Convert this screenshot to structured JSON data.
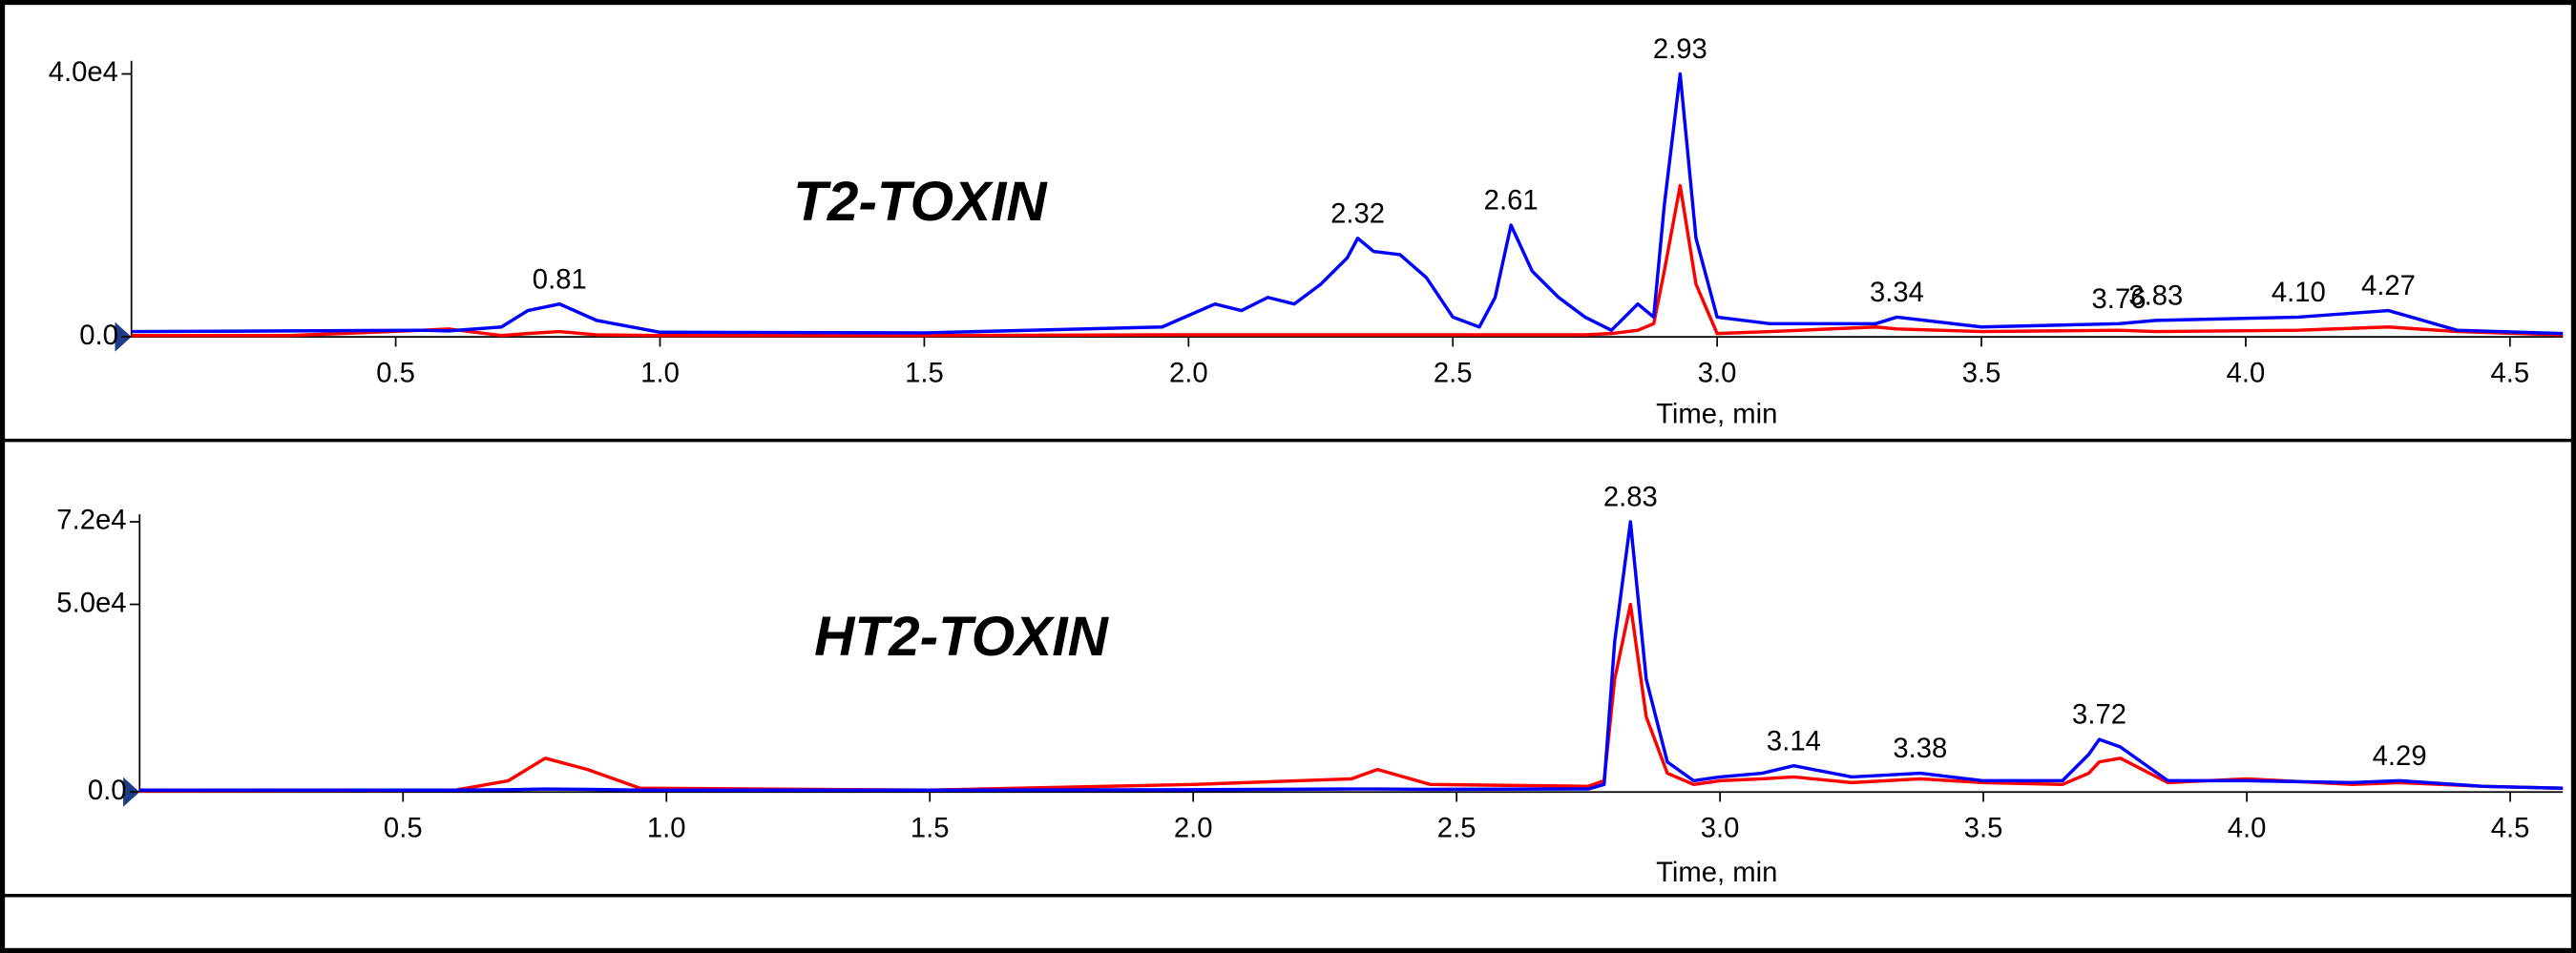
{
  "chart_data": [
    {
      "type": "line",
      "title": "T2-TOXIN",
      "xlabel": "Time, min",
      "x": [
        0,
        0.3,
        0.55,
        0.6,
        0.7,
        0.75,
        0.81,
        0.88,
        1.0,
        1.5,
        1.95,
        2.05,
        2.1,
        2.15,
        2.2,
        2.25,
        2.3,
        2.32,
        2.35,
        2.4,
        2.45,
        2.5,
        2.55,
        2.58,
        2.61,
        2.65,
        2.7,
        2.75,
        2.8,
        2.85,
        2.88,
        2.9,
        2.93,
        2.96,
        3.0,
        3.1,
        3.3,
        3.34,
        3.5,
        3.76,
        3.83,
        4.1,
        4.27,
        4.4,
        4.6
      ],
      "series": [
        {
          "color": "#ff0000",
          "values": [
            200,
            200,
            1000,
            1200,
            200,
            500,
            800,
            300,
            200,
            200,
            300,
            300,
            300,
            300,
            300,
            300,
            300,
            300,
            300,
            300,
            300,
            300,
            300,
            300,
            300,
            300,
            300,
            300,
            500,
            1000,
            2000,
            10000,
            23000,
            8000,
            500,
            800,
            1500,
            1200,
            800,
            1000,
            800,
            1000,
            1500,
            800,
            300
          ]
        },
        {
          "color": "#0000ff",
          "values": [
            800,
            900,
            1000,
            900,
            1500,
            4000,
            5000,
            2500,
            700,
            600,
            1500,
            5000,
            4000,
            6000,
            5000,
            8000,
            12000,
            15000,
            13000,
            12500,
            9000,
            3000,
            1500,
            6000,
            17000,
            10000,
            6000,
            3000,
            1000,
            5000,
            3000,
            20000,
            40000,
            15000,
            3000,
            2000,
            2000,
            3000,
            1500,
            2000,
            2500,
            3000,
            4000,
            1000,
            500
          ]
        }
      ],
      "xlim": [
        0,
        4.6
      ],
      "xticks": [
        0.5,
        {
          "value": 1,
          "label": "1.0"
        },
        1.5,
        {
          "value": 2,
          "label": "2.0"
        },
        2.5,
        {
          "value": 3,
          "label": "3.0"
        },
        3.5,
        {
          "value": 4,
          "label": "4.0"
        },
        4.5
      ],
      "ylim": [
        0,
        42000
      ],
      "yticks": [
        {
          "value": 0,
          "label": "0.0"
        },
        {
          "value": 40000,
          "label": "4.0e4"
        }
      ],
      "peak_labels": [
        0.81,
        2.32,
        2.61,
        2.93,
        3.34,
        3.76,
        3.83,
        {
          "value": 4.1,
          "label": "4.10"
        },
        4.27
      ]
    },
    {
      "type": "line",
      "title": "HT2-TOXIN",
      "xlabel": "Time, min",
      "x": [
        0,
        0.6,
        0.7,
        0.77,
        0.85,
        0.95,
        1.5,
        2.0,
        2.3,
        2.35,
        2.45,
        2.75,
        2.78,
        2.8,
        2.83,
        2.86,
        2.9,
        2.95,
        3.0,
        3.08,
        3.14,
        3.25,
        3.38,
        3.5,
        3.65,
        3.7,
        3.72,
        3.76,
        3.85,
        4.0,
        4.2,
        4.29,
        4.45,
        4.6
      ],
      "series": [
        {
          "color": "#ff0000",
          "values": [
            300,
            500,
            3000,
            9000,
            6000,
            1000,
            500,
            2000,
            3500,
            6000,
            2000,
            1500,
            3000,
            30000,
            50000,
            20000,
            5000,
            2000,
            3000,
            3500,
            4000,
            2500,
            3500,
            2500,
            2000,
            5000,
            8000,
            9000,
            2500,
            3500,
            2000,
            2500,
            1500,
            1000
          ]
        },
        {
          "color": "#0000ff",
          "values": [
            500,
            500,
            600,
            800,
            700,
            500,
            500,
            600,
            800,
            800,
            700,
            800,
            2000,
            40000,
            72000,
            30000,
            8000,
            3000,
            4000,
            5000,
            7000,
            4000,
            5000,
            3000,
            3000,
            10000,
            14000,
            12000,
            3000,
            3000,
            2500,
            3000,
            1500,
            1000
          ]
        }
      ],
      "xlim": [
        0,
        4.6
      ],
      "xticks": [
        0.5,
        {
          "value": 1,
          "label": "1.0"
        },
        1.5,
        {
          "value": 2,
          "label": "2.0"
        },
        2.5,
        {
          "value": 3,
          "label": "3.0"
        },
        3.5,
        {
          "value": 4,
          "label": "4.0"
        },
        4.5
      ],
      "ylim": [
        0,
        74000
      ],
      "yticks": [
        {
          "value": 0,
          "label": "0.0"
        },
        {
          "value": 50000,
          "label": "5.0e4"
        },
        {
          "value": 72000,
          "label": "7.2e4"
        }
      ],
      "peak_labels": [
        2.83,
        3.14,
        3.38,
        3.72,
        4.29
      ]
    }
  ]
}
